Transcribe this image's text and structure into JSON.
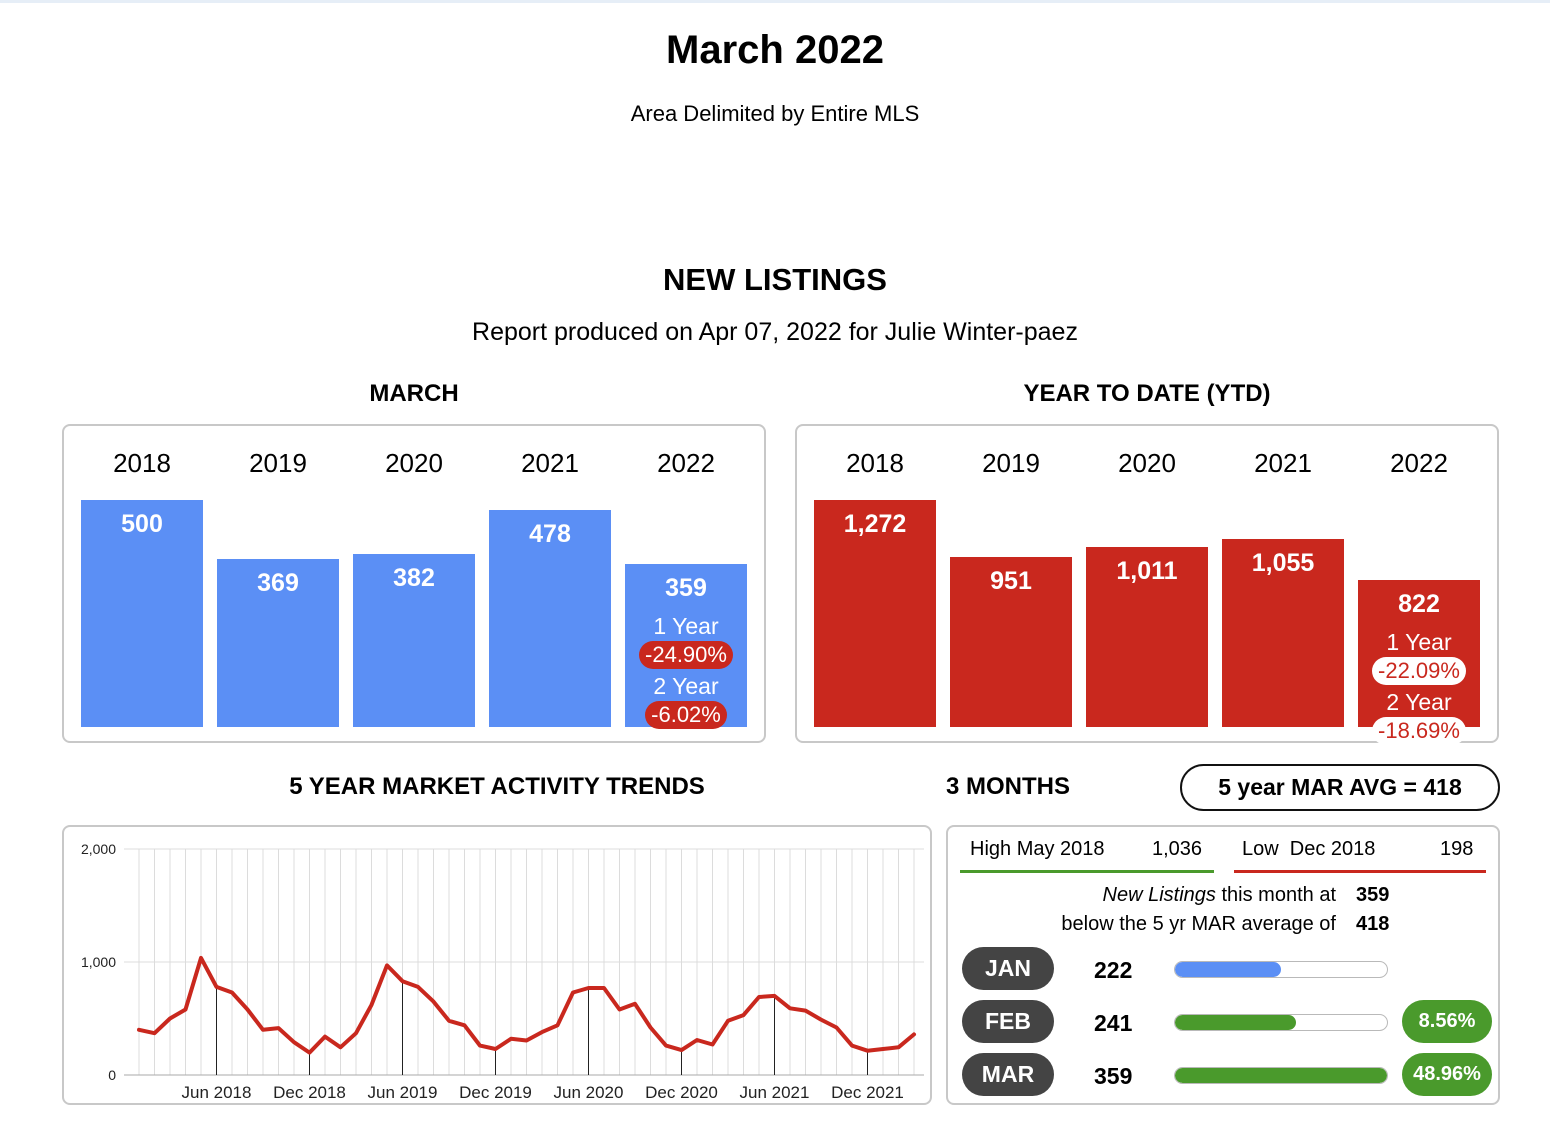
{
  "header": {
    "title": "March 2022",
    "subtitle": "Area Delimited by Entire MLS",
    "section_title": "NEW LISTINGS",
    "report_line": "Report produced on Apr 07, 2022 for Julie Winter-paez"
  },
  "march_panel": {
    "heading": "MARCH",
    "years": [
      "2018",
      "2019",
      "2020",
      "2021",
      "2022"
    ],
    "value_labels": [
      "500",
      "369",
      "382",
      "478",
      "359"
    ],
    "one_year_label": "1 Year",
    "one_year_change": "-24.90%",
    "two_year_label": "2 Year",
    "two_year_change": "-6.02%"
  },
  "ytd_panel": {
    "heading": "YEAR TO DATE (YTD)",
    "years": [
      "2018",
      "2019",
      "2020",
      "2021",
      "2022"
    ],
    "value_labels": [
      "1,272",
      "951",
      "1,011",
      "1,055",
      "822"
    ],
    "one_year_label": "1 Year",
    "one_year_change": "-22.09%",
    "two_year_label": "2 Year",
    "two_year_change": "-18.69%"
  },
  "trends": {
    "heading": "5 YEAR MARKET ACTIVITY TRENDS"
  },
  "three_months": {
    "heading": "3 MONTHS",
    "avg_pill": "5 year MAR AVG = 418",
    "high_label": "High May 2018",
    "high_value": "1,036",
    "low_label": "Low  Dec 2018",
    "low_value": "198",
    "line1_italic": "New Listings",
    "line1_rest": " this month at",
    "line1_value": "359",
    "line2_text": "below the 5 yr MAR average of",
    "line2_value": "418",
    "months": [
      {
        "label": "JAN",
        "value": "222",
        "fraction": 0.5,
        "pct": ""
      },
      {
        "label": "FEB",
        "value": "241",
        "fraction": 0.57,
        "pct": "8.56%"
      },
      {
        "label": "MAR",
        "value": "359",
        "fraction": 1.0,
        "pct": "48.96%"
      }
    ],
    "colors": {
      "jan_fill": "#5b8ff5",
      "fill": "#4a9a2c",
      "pill": "#444444",
      "pct": "#4a9a2c",
      "high_line": "#4a9a2c",
      "low_line": "#c9281e"
    }
  },
  "chart_data": [
    {
      "type": "bar",
      "title": "MARCH",
      "categories": [
        "2018",
        "2019",
        "2020",
        "2021",
        "2022"
      ],
      "values": [
        500,
        369,
        382,
        478,
        359
      ],
      "color": "#5b8ff5"
    },
    {
      "type": "bar",
      "title": "YEAR TO DATE (YTD)",
      "categories": [
        "2018",
        "2019",
        "2020",
        "2021",
        "2022"
      ],
      "values": [
        1272,
        951,
        1011,
        1055,
        822
      ],
      "color": "#c9281e"
    },
    {
      "type": "line",
      "title": "5 YEAR MARKET ACTIVITY TRENDS",
      "ylim": [
        0,
        2000
      ],
      "y_ticks": [
        0,
        1000,
        2000
      ],
      "y_tick_labels": [
        "0",
        "1,000",
        "2,000"
      ],
      "grid": true,
      "x_tick_labels": [
        "Jun 2018",
        "Dec 2018",
        "Jun 2019",
        "Dec 2019",
        "Jun 2020",
        "Dec 2020",
        "Jun 2021",
        "Dec 2021"
      ],
      "x_tick_index": [
        5,
        11,
        17,
        23,
        29,
        35,
        41,
        47
      ],
      "series": [
        {
          "color": "#c9281e",
          "values": [
            400,
            370,
            500,
            580,
            1036,
            780,
            730,
            580,
            400,
            415,
            290,
            198,
            340,
            245,
            370,
            620,
            970,
            830,
            780,
            650,
            480,
            440,
            260,
            230,
            320,
            305,
            380,
            440,
            730,
            770,
            770,
            580,
            630,
            420,
            260,
            220,
            310,
            270,
            480,
            530,
            690,
            700,
            590,
            570,
            490,
            420,
            260,
            215,
            230,
            245,
            359
          ]
        }
      ]
    }
  ]
}
